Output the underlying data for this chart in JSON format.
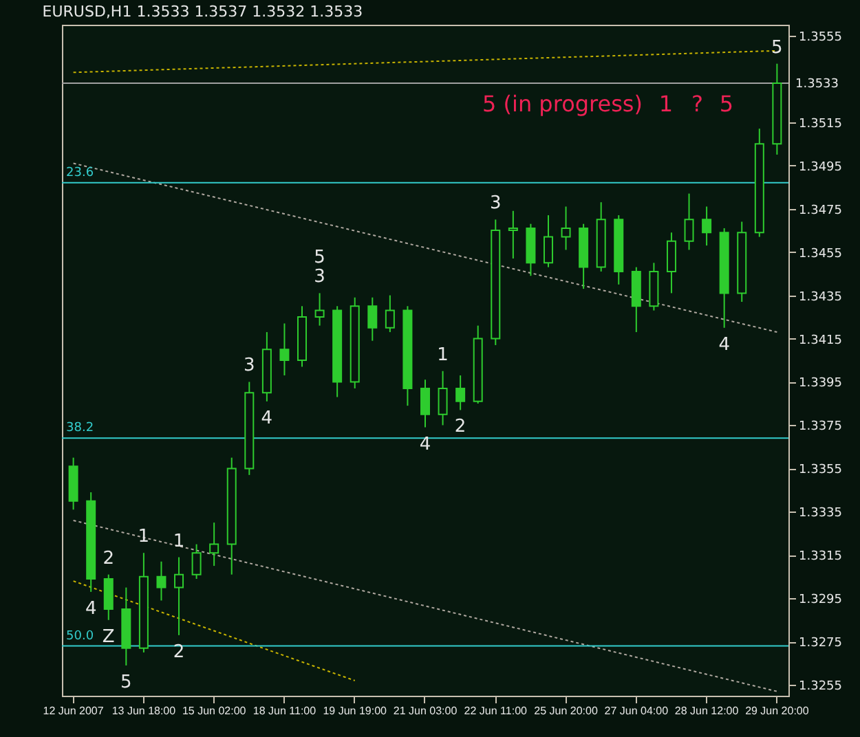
{
  "chart_data": {
    "type": "candlestick",
    "title": "EURUSD,H1 1.3533 1.3537 1.3532 1.3533",
    "color": "#2ecc2e",
    "categories": [
      "12 Jun 2007",
      null,
      null,
      null,
      "13 Jun 18:00",
      null,
      null,
      null,
      "15 Jun 02:00",
      null,
      null,
      null,
      "18 Jun 11:00",
      null,
      null,
      null,
      "19 Jun 19:00",
      null,
      null,
      null,
      "21 Jun 03:00",
      null,
      null,
      null,
      "22 Jun 11:00",
      null,
      null,
      null,
      "25 Jun 20:00",
      null,
      null,
      null,
      "27 Jun 04:00",
      null,
      null,
      null,
      "28 Jun 12:00",
      null,
      null,
      null,
      "29 Jun 20:00"
    ],
    "ohlc": [
      [
        1.3356,
        1.336,
        1.3336,
        1.334
      ],
      [
        1.334,
        1.3344,
        1.3298,
        1.3304
      ],
      [
        1.3304,
        1.3306,
        1.3285,
        1.329
      ],
      [
        1.329,
        1.33,
        1.3264,
        1.3272
      ],
      [
        1.3272,
        1.3316,
        1.327,
        1.3305
      ],
      [
        1.3305,
        1.3312,
        1.3294,
        1.33
      ],
      [
        1.33,
        1.3314,
        1.3278,
        1.3306
      ],
      [
        1.3306,
        1.332,
        1.3304,
        1.3316
      ],
      [
        1.3316,
        1.333,
        1.331,
        1.332
      ],
      [
        1.332,
        1.336,
        1.3306,
        1.3355
      ],
      [
        1.3355,
        1.3395,
        1.3352,
        1.339
      ],
      [
        1.339,
        1.3418,
        1.3386,
        1.341
      ],
      [
        1.341,
        1.3422,
        1.3398,
        1.3405
      ],
      [
        1.3405,
        1.343,
        1.3402,
        1.3425
      ],
      [
        1.3425,
        1.3436,
        1.3421,
        1.3428
      ],
      [
        1.3428,
        1.343,
        1.3388,
        1.3395
      ],
      [
        1.3395,
        1.3434,
        1.3392,
        1.343
      ],
      [
        1.343,
        1.3434,
        1.3414,
        1.342
      ],
      [
        1.342,
        1.3435,
        1.3418,
        1.3428
      ],
      [
        1.3428,
        1.343,
        1.3384,
        1.3392
      ],
      [
        1.3392,
        1.3396,
        1.3374,
        1.338
      ],
      [
        1.338,
        1.34,
        1.3375,
        1.3392
      ],
      [
        1.3392,
        1.3398,
        1.3382,
        1.3386
      ],
      [
        1.3386,
        1.3421,
        1.3385,
        1.3415
      ],
      [
        1.3415,
        1.347,
        1.3412,
        1.3465
      ],
      [
        1.3465,
        1.3474,
        1.3452,
        1.3466
      ],
      [
        1.3466,
        1.3468,
        1.3444,
        1.345
      ],
      [
        1.345,
        1.3472,
        1.3448,
        1.3462
      ],
      [
        1.3462,
        1.3476,
        1.3456,
        1.3466
      ],
      [
        1.3466,
        1.3468,
        1.3438,
        1.3448
      ],
      [
        1.3448,
        1.3478,
        1.3446,
        1.347
      ],
      [
        1.347,
        1.3472,
        1.344,
        1.3446
      ],
      [
        1.3446,
        1.3448,
        1.3418,
        1.343
      ],
      [
        1.343,
        1.345,
        1.3428,
        1.3446
      ],
      [
        1.3446,
        1.3464,
        1.3436,
        1.346
      ],
      [
        1.346,
        1.3482,
        1.3456,
        1.347
      ],
      [
        1.347,
        1.3476,
        1.3458,
        1.3464
      ],
      [
        1.3464,
        1.3466,
        1.342,
        1.3436
      ],
      [
        1.3436,
        1.3469,
        1.3432,
        1.3464
      ],
      [
        1.3464,
        1.3512,
        1.3462,
        1.3505
      ],
      [
        1.3505,
        1.3542,
        1.35,
        1.3533
      ]
    ],
    "series": [
      {
        "type": "line",
        "x": [
          "12 Jun 2007",
          "29 Jun 20:00"
        ],
        "values": [
          1.3538,
          1.3548
        ],
        "color": "#c8b400",
        "line_style": "dotted"
      },
      {
        "type": "line",
        "x": [
          "12 Jun 2007",
          "29 Jun 20:00"
        ],
        "values": [
          1.3496,
          1.3418
        ],
        "color": "#b0a8a0",
        "line_style": "dotted"
      },
      {
        "type": "line",
        "x": [
          "12 Jun 2007",
          "29 Jun 20:00"
        ],
        "values": [
          1.3331,
          1.3252
        ],
        "color": "#b0a8a0",
        "line_style": "dotted"
      },
      {
        "type": "line",
        "x": [
          "12 Jun 2007",
          "19 Jun 19:00"
        ],
        "values": [
          1.3303,
          1.3257
        ],
        "color": "#c8b400",
        "line_style": "dotted"
      }
    ],
    "ylim": [
      1.325,
      1.356
    ],
    "yticks": [
      1.3255,
      1.3275,
      1.3295,
      1.3315,
      1.3335,
      1.3355,
      1.3375,
      1.3395,
      1.3415,
      1.3435,
      1.3455,
      1.3475,
      1.3495,
      1.3515,
      1.3555
    ],
    "ref_lines": [
      {
        "axis": "y",
        "value": 1.3533,
        "label": "1.3533",
        "color": "#a0a0a0"
      },
      {
        "axis": "y",
        "value": 1.3487,
        "color": "#33cccc"
      },
      {
        "axis": "y",
        "value": 1.3369,
        "color": "#33cccc"
      },
      {
        "axis": "y",
        "value": 1.3273,
        "color": "#33cccc"
      }
    ],
    "annotations": [
      "5 (in progress)",
      "1",
      "?",
      "5",
      {
        "text": "5",
        "y": 1.3542
      },
      {
        "text": "3",
        "y": 1.3436
      },
      {
        "text": "5",
        "y": 1.3436
      },
      {
        "text": "1",
        "y": 1.34
      },
      {
        "text": "3",
        "y": 1.347
      },
      {
        "text": "4",
        "y": 1.342
      },
      {
        "text": "3",
        "y": 1.3395
      },
      {
        "text": "4",
        "y": 1.3386
      },
      {
        "text": "2",
        "y": 1.3382
      },
      {
        "text": "4",
        "y": 1.3374
      },
      {
        "text": "1",
        "y": 1.3316
      },
      {
        "text": "1",
        "y": 1.3314
      },
      {
        "text": "2",
        "y": 1.3306
      },
      {
        "text": "2",
        "y": 1.3278
      },
      {
        "text": "4",
        "y": 1.3298
      },
      {
        "text": "Z",
        "y": 1.3285
      },
      {
        "text": "5",
        "y": 1.3264
      },
      {
        "text": "23.6",
        "y": 1.3487
      },
      {
        "text": "38.2",
        "y": 1.3369
      },
      {
        "text": "50.0",
        "y": 1.3273
      }
    ]
  }
}
